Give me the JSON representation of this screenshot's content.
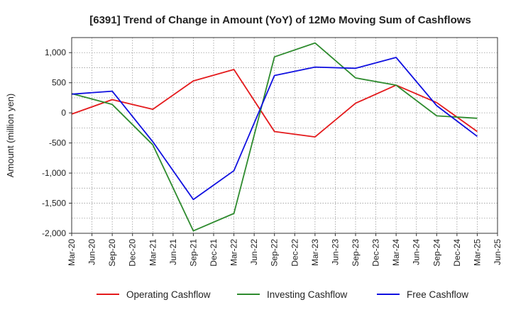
{
  "chart_data": {
    "type": "line",
    "title": "[6391]  Trend of Change in Amount (YoY) of 12Mo Moving Sum of Cashflows",
    "xlabel": "",
    "ylabel": "Amount (million yen)",
    "ylim": [
      -2000,
      1250
    ],
    "yticks": [
      1000,
      500,
      0,
      -500,
      -1000,
      -1500,
      -2000
    ],
    "ytick_labels": [
      "1,000",
      "500",
      "0",
      "-500",
      "-1,000",
      "-1,500",
      "-2,000"
    ],
    "x_labels": [
      "Mar-20",
      "Jun-20",
      "Sep-20",
      "Dec-20",
      "Mar-21",
      "Jun-21",
      "Sep-21",
      "Dec-21",
      "Mar-22",
      "Jun-22",
      "Sep-22",
      "Dec-22",
      "Mar-23",
      "Jun-23",
      "Sep-23",
      "Dec-23",
      "Mar-24",
      "Jun-24",
      "Sep-24",
      "Dec-24",
      "Mar-25",
      "Jun-25"
    ],
    "grid": true,
    "legend_position": "bottom",
    "series": [
      {
        "name": "Operating Cashflow",
        "color": "#e41a1c",
        "points": [
          [
            "Mar-20",
            -20
          ],
          [
            "Sep-20",
            220
          ],
          [
            "Mar-21",
            60
          ],
          [
            "Sep-21",
            530
          ],
          [
            "Mar-22",
            720
          ],
          [
            "Sep-22",
            -310
          ],
          [
            "Mar-23",
            -400
          ],
          [
            "Sep-23",
            160
          ],
          [
            "Mar-24",
            460
          ],
          [
            "Sep-24",
            170
          ],
          [
            "Mar-25",
            -310
          ]
        ]
      },
      {
        "name": "Investing Cashflow",
        "color": "#2e8b2e",
        "points": [
          [
            "Mar-20",
            320
          ],
          [
            "Sep-20",
            140
          ],
          [
            "Mar-21",
            -530
          ],
          [
            "Sep-21",
            -1960
          ],
          [
            "Mar-22",
            -1670
          ],
          [
            "Sep-22",
            930
          ],
          [
            "Mar-23",
            1160
          ],
          [
            "Sep-23",
            580
          ],
          [
            "Mar-24",
            460
          ],
          [
            "Sep-24",
            -50
          ],
          [
            "Mar-25",
            -90
          ]
        ]
      },
      {
        "name": "Free Cashflow",
        "color": "#1010e0",
        "points": [
          [
            "Mar-20",
            310
          ],
          [
            "Sep-20",
            360
          ],
          [
            "Mar-21",
            -480
          ],
          [
            "Sep-21",
            -1440
          ],
          [
            "Mar-22",
            -960
          ],
          [
            "Sep-22",
            620
          ],
          [
            "Mar-23",
            760
          ],
          [
            "Sep-23",
            740
          ],
          [
            "Mar-24",
            920
          ],
          [
            "Sep-24",
            120
          ],
          [
            "Mar-25",
            -390
          ]
        ]
      }
    ]
  }
}
